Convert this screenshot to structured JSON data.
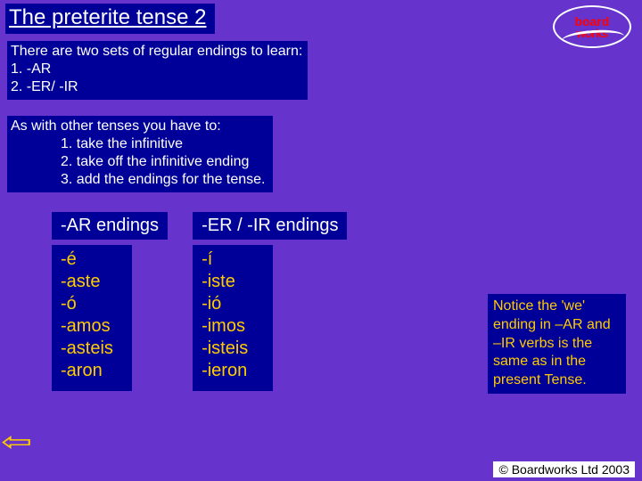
{
  "title": "The preterite tense 2",
  "logo": {
    "line1": "board",
    "line2": "works"
  },
  "intro": {
    "line1": "There are two sets of regular endings to learn:",
    "line2": "1.   -AR",
    "line3": "2.   -ER/ -IR"
  },
  "instructions": {
    "line1": "As with other tenses you have to:",
    "step1": "1. take the infinitive",
    "step2": "2. take off the infinitive ending",
    "step3": "3. add the endings for the tense."
  },
  "columns": {
    "ar": {
      "header": "-AR endings",
      "rows": [
        "-é",
        "-aste",
        "-ó",
        "-amos",
        "-asteis",
        "-aron"
      ]
    },
    "erir": {
      "header": "-ER / -IR endings",
      "rows": [
        "-í",
        "-iste",
        "-ió",
        "-imos",
        "-isteis",
        "-ieron"
      ]
    }
  },
  "note": "Notice the 'we' ending  in –AR and –IR verbs is the same as in the present Tense.",
  "copyright": "© Boardworks Ltd  2003",
  "colors": {
    "bg": "#6633cc",
    "box": "#000099",
    "text_white": "#ffffff",
    "accent": "#ffcc00"
  }
}
